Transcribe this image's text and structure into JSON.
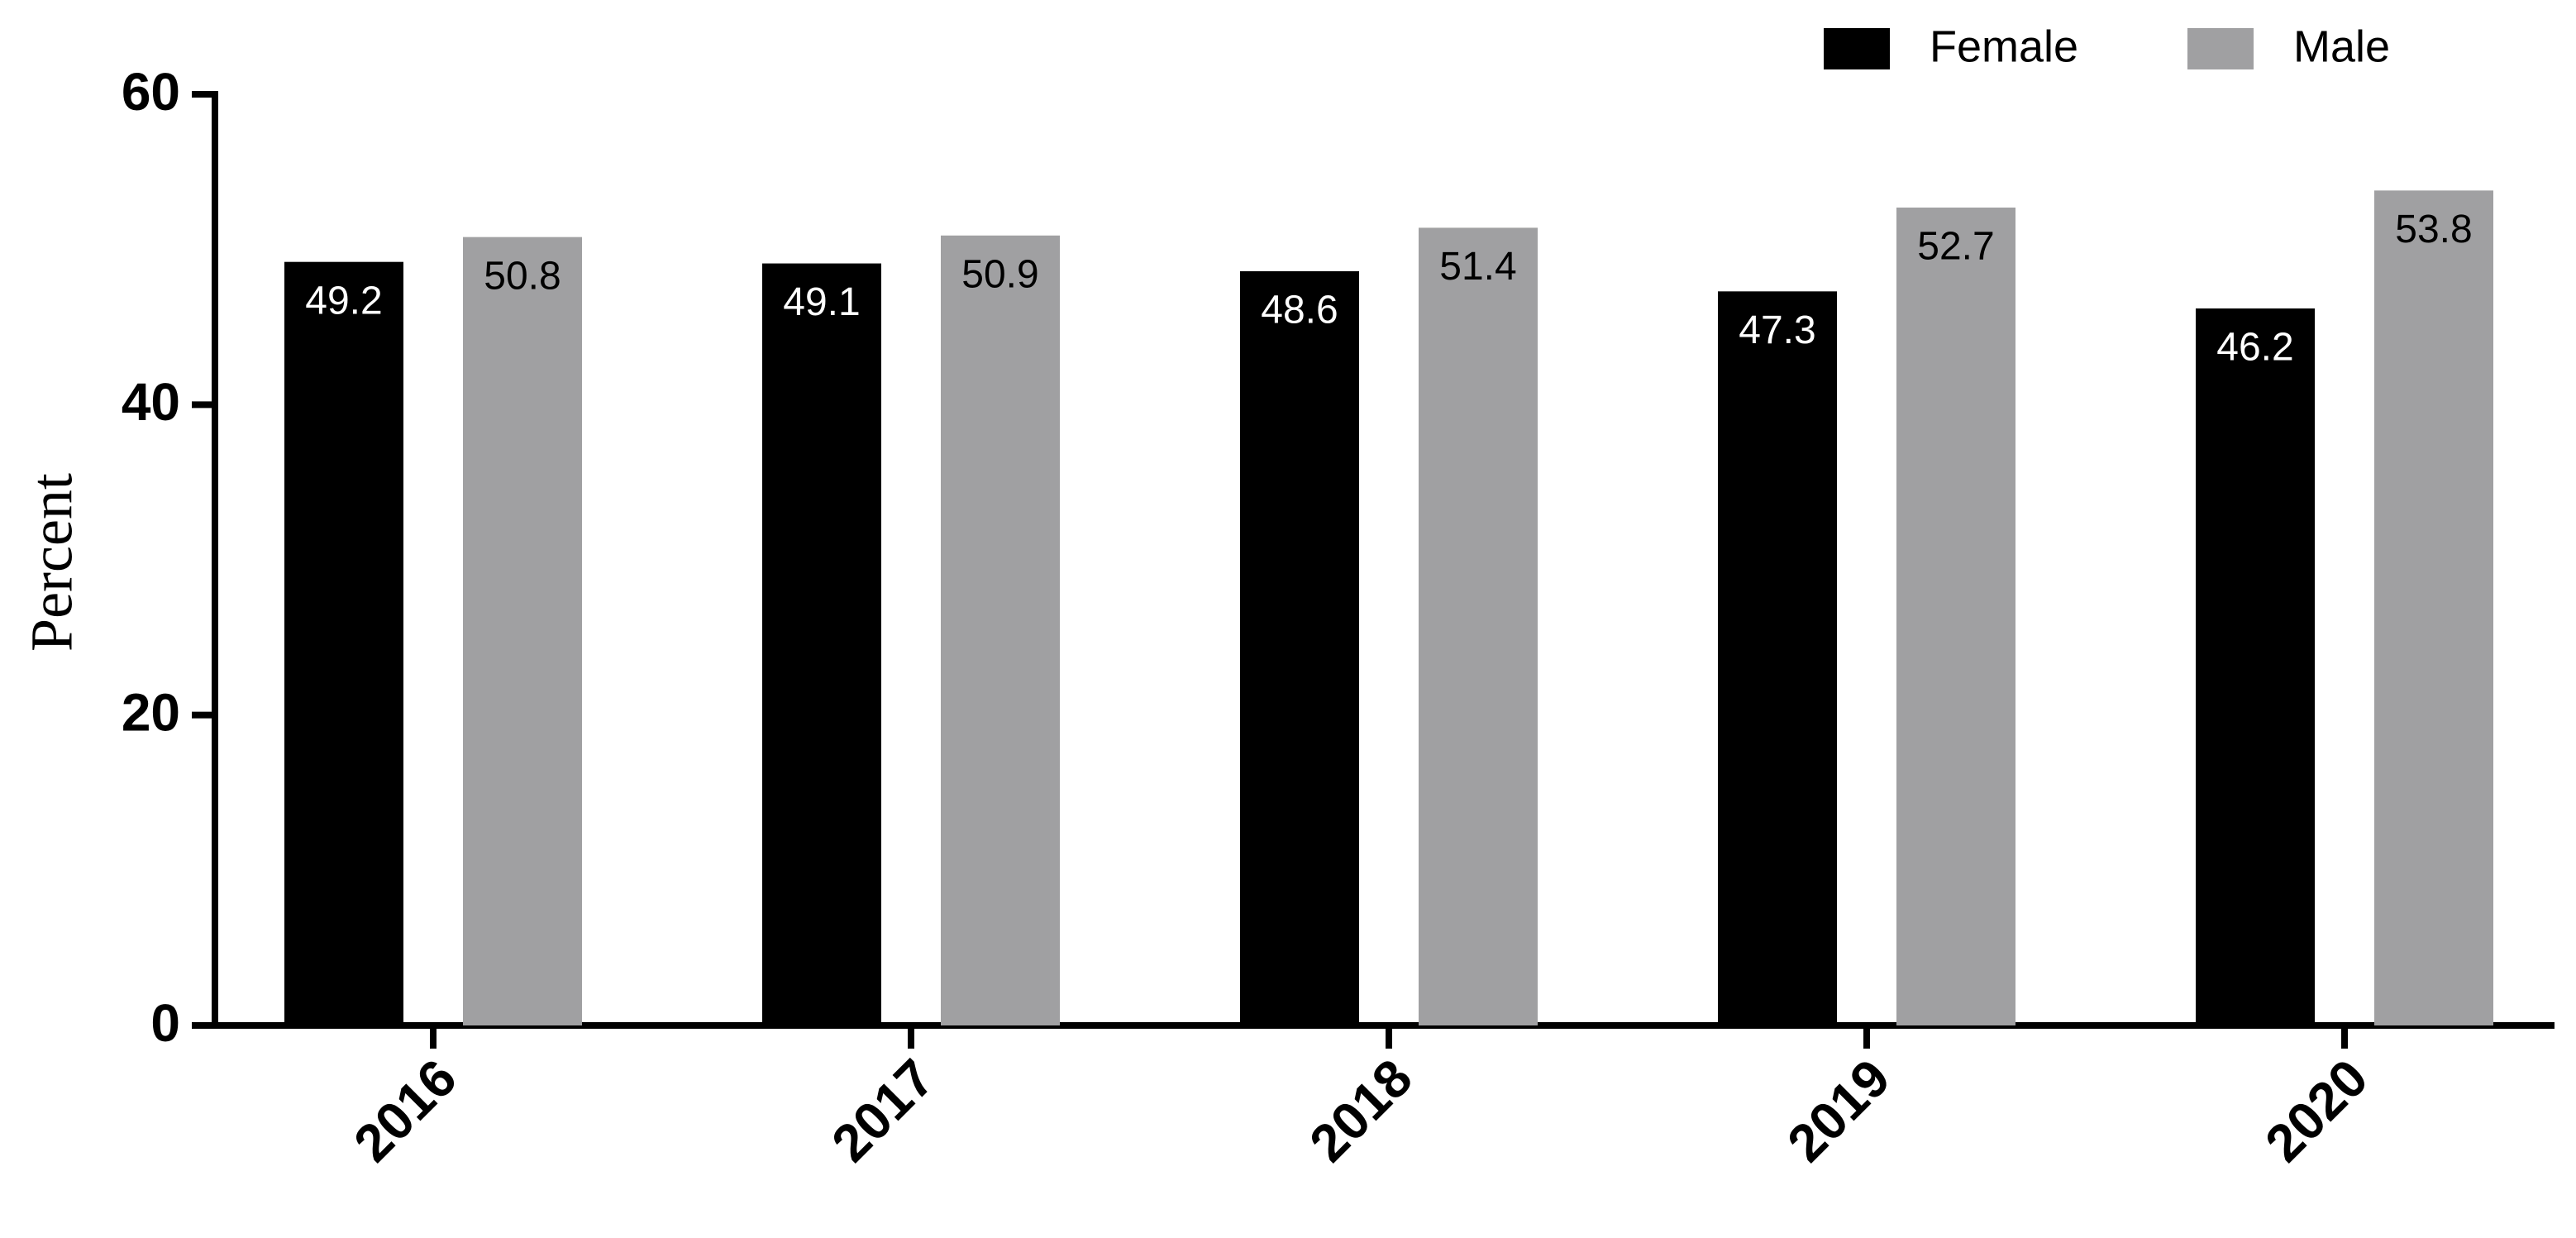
{
  "chart_data": {
    "type": "bar",
    "categories": [
      "2016",
      "2017",
      "2018",
      "2019",
      "2020"
    ],
    "series": [
      {
        "name": "Female",
        "color": "#000000",
        "values": [
          49.2,
          49.1,
          48.6,
          47.3,
          46.2
        ]
      },
      {
        "name": "Male",
        "color": "#a0a0a2",
        "values": [
          50.8,
          50.9,
          51.4,
          52.7,
          53.8
        ]
      }
    ],
    "y_label": "Percent",
    "ylim": [
      0,
      60
    ],
    "yticks": [
      0,
      20,
      40,
      60
    ],
    "legend": "top-right",
    "grid": false
  }
}
